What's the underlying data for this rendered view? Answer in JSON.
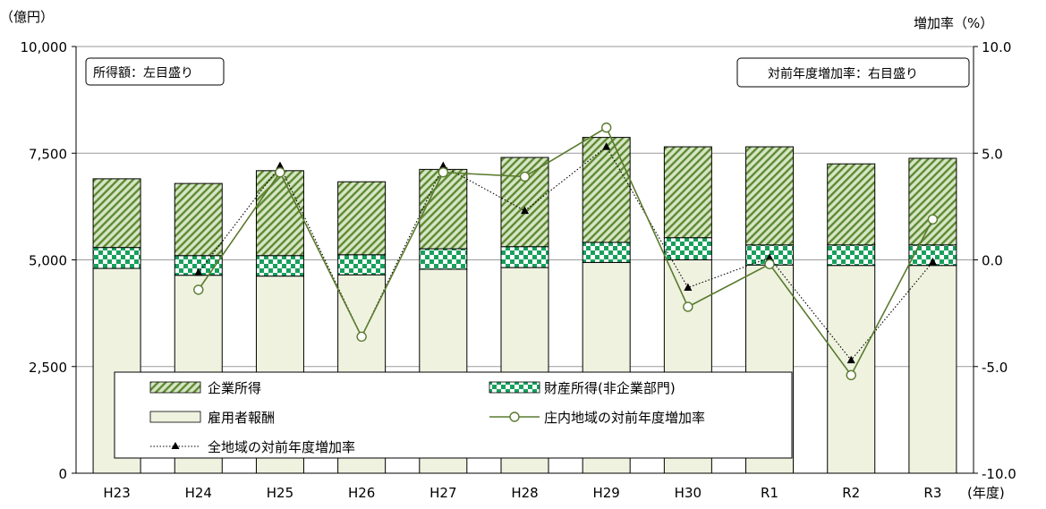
{
  "chart_data": {
    "type": "bar",
    "categories": [
      "H23",
      "H24",
      "H25",
      "H26",
      "H27",
      "H28",
      "H29",
      "H30",
      "R1",
      "R2",
      "R3"
    ],
    "left_axis": {
      "unit_label": "（億円）",
      "ylim": [
        0,
        10000
      ],
      "ticks": [
        0,
        2500,
        5000,
        7500,
        10000
      ],
      "tick_labels": [
        "0",
        "2,500",
        "5,000",
        "7,500",
        "10,000"
      ]
    },
    "right_axis": {
      "unit_label": "増加率（%）",
      "ylim": [
        -10,
        10
      ],
      "ticks": [
        -10,
        -5,
        0,
        5,
        10
      ],
      "tick_labels": [
        "-10.0",
        "-5.0",
        "0.0",
        "5.0",
        "10.0"
      ]
    },
    "x_unit_label": "(年度)",
    "annotations": {
      "left_note": "所得額：左目盛り",
      "right_note": "対前年度増加率：右目盛り"
    },
    "stacked_series": [
      {
        "name": "雇用者報酬",
        "values": [
          4800,
          4640,
          4620,
          4650,
          4780,
          4820,
          4940,
          5000,
          4880,
          4870,
          4870
        ]
      },
      {
        "name": "財産所得(非企業部門)",
        "values": [
          490,
          460,
          480,
          470,
          480,
          490,
          470,
          520,
          470,
          480,
          480
        ]
      },
      {
        "name": "企業所得",
        "values": [
          1610,
          1690,
          1990,
          1710,
          1860,
          2090,
          2460,
          2130,
          2300,
          1900,
          2030
        ]
      }
    ],
    "line_series": [
      {
        "name": "庄内地域の対前年度増加率",
        "values": [
          null,
          -1.4,
          4.1,
          -3.6,
          4.1,
          3.9,
          6.2,
          -2.2,
          -0.2,
          -5.4,
          1.9
        ]
      },
      {
        "name": "全地域の対前年度増加率",
        "values": [
          null,
          -0.6,
          4.4,
          -3.6,
          4.4,
          2.3,
          5.3,
          -1.3,
          0.1,
          -4.7,
          -0.1
        ]
      }
    ],
    "legend_placement": "bottom-center",
    "colors": {
      "corporate": "#5e8a33",
      "corporate_bg": "#d6e5c4",
      "property": "#17a05c",
      "employee": "#eef2df",
      "line_shonai": "#5a7a2e",
      "line_all": "#000000",
      "gridline": "#9a9a9a"
    }
  }
}
